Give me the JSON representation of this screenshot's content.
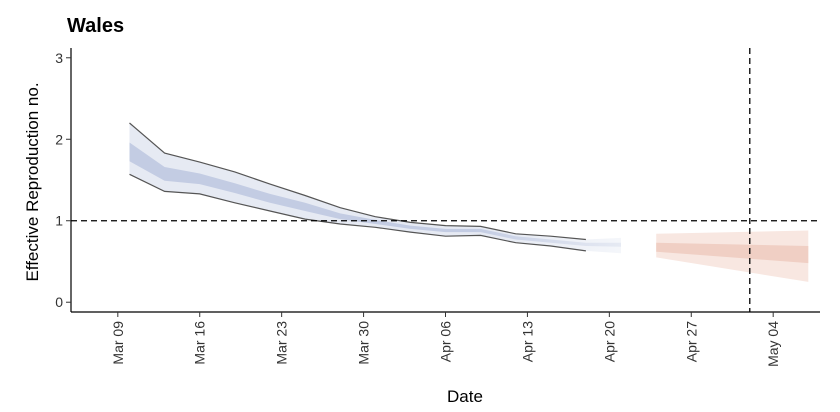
{
  "chart_data": {
    "type": "area",
    "title": "Wales",
    "xlabel": "Date",
    "ylabel": "Effective Reproduction no.",
    "ylim": [
      -0.12,
      3.12
    ],
    "xlim": [
      "2020-03-05",
      "2020-05-08"
    ],
    "y_ticks": [
      "0",
      "1",
      "2",
      "3"
    ],
    "x_ticks": [
      {
        "date": "2020-03-09",
        "label": "Mar 09"
      },
      {
        "date": "2020-03-16",
        "label": "Mar 16"
      },
      {
        "date": "2020-03-23",
        "label": "Mar 23"
      },
      {
        "date": "2020-03-30",
        "label": "Mar 30"
      },
      {
        "date": "2020-04-06",
        "label": "Apr 06"
      },
      {
        "date": "2020-04-13",
        "label": "Apr 13"
      },
      {
        "date": "2020-04-20",
        "label": "Apr 20"
      },
      {
        "date": "2020-04-27",
        "label": "Apr 27"
      },
      {
        "date": "2020-05-04",
        "label": "May 04"
      }
    ],
    "reference_line": {
      "y": 1,
      "style": "dashed"
    },
    "vertical_line": {
      "date": "2020-05-02",
      "style": "dashed"
    },
    "grid": false,
    "legend": "none",
    "colors": {
      "estimate_inner": "#c3cce3",
      "estimate_outer": "#e6eaf3",
      "estimate_border": "#555555",
      "forecast_inner": "#f0cfc4",
      "forecast_outer": "#f8e7e1"
    },
    "series": [
      {
        "x": [
          "2020-03-10",
          "2020-03-13",
          "2020-03-16",
          "2020-03-19",
          "2020-03-22",
          "2020-03-25",
          "2020-03-28",
          "2020-03-31",
          "2020-04-03",
          "2020-04-06",
          "2020-04-09",
          "2020-04-12",
          "2020-04-15",
          "2020-04-18",
          "2020-04-21"
        ],
        "outer_upper": [
          2.2,
          1.83,
          1.72,
          1.6,
          1.45,
          1.31,
          1.16,
          1.05,
          0.98,
          0.94,
          0.93,
          0.84,
          0.81,
          0.77,
          0.79
        ],
        "inner_upper": [
          1.96,
          1.66,
          1.58,
          1.46,
          1.33,
          1.22,
          1.09,
          1.01,
          0.94,
          0.9,
          0.9,
          0.81,
          0.77,
          0.73,
          0.73
        ],
        "inner_lower": [
          1.73,
          1.49,
          1.45,
          1.34,
          1.22,
          1.12,
          1.02,
          0.96,
          0.9,
          0.86,
          0.86,
          0.77,
          0.73,
          0.69,
          0.68
        ],
        "outer_lower": [
          1.57,
          1.36,
          1.33,
          1.22,
          1.12,
          1.02,
          0.96,
          0.92,
          0.86,
          0.81,
          0.82,
          0.73,
          0.69,
          0.63,
          0.6
        ]
      },
      {
        "x": [
          "2020-04-24",
          "2020-05-07"
        ],
        "outer_upper": [
          0.84,
          0.88
        ],
        "inner_upper": [
          0.73,
          0.69
        ],
        "inner_lower": [
          0.62,
          0.48
        ],
        "outer_lower": [
          0.55,
          0.25
        ]
      }
    ]
  }
}
